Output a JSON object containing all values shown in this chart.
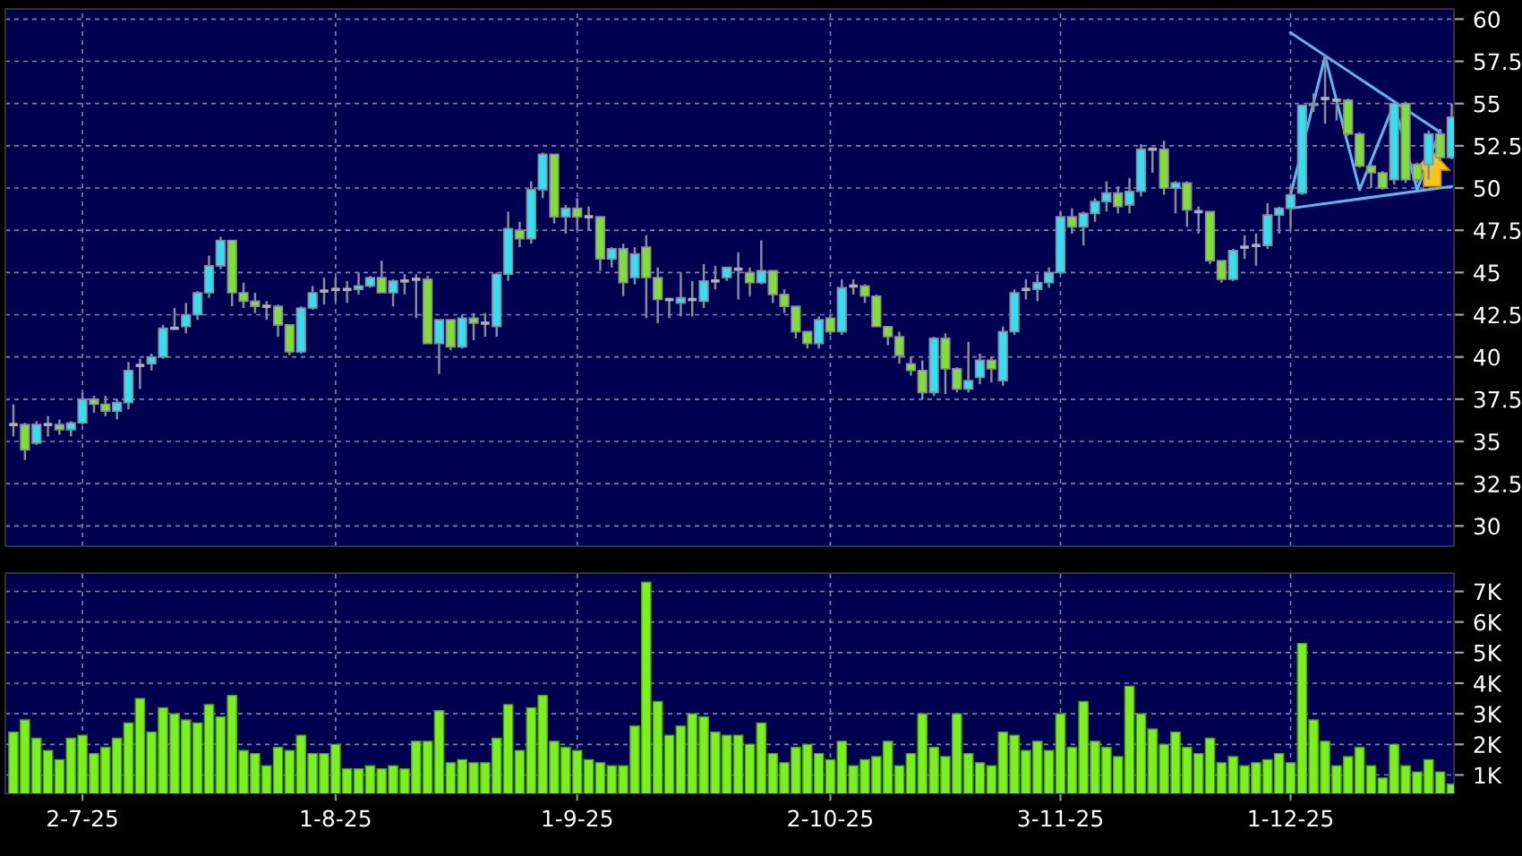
{
  "chart_data": [
    {
      "type": "candlestick",
      "categories": [
        null,
        null,
        null,
        null,
        null,
        null,
        null,
        null,
        null,
        null,
        null,
        null,
        null,
        null,
        null,
        null,
        null,
        null,
        null,
        null,
        null,
        null,
        null,
        null,
        null,
        null,
        null,
        null,
        null,
        null,
        null,
        null,
        null,
        null,
        null,
        null,
        null,
        null,
        null,
        null,
        null,
        null,
        null,
        null,
        null,
        null,
        null,
        null,
        null,
        null,
        null,
        null,
        null,
        null,
        null,
        null,
        null,
        null,
        null,
        null,
        null,
        null,
        null,
        null,
        null,
        null,
        null,
        null,
        null,
        null,
        null,
        null,
        null,
        null,
        null,
        null,
        null,
        null,
        null,
        null,
        null,
        null,
        null,
        null,
        null,
        null,
        null,
        null,
        null,
        null,
        null,
        null,
        null,
        null,
        null,
        null,
        null,
        null,
        null,
        null,
        null,
        null,
        null,
        null,
        null,
        null,
        null,
        null,
        null,
        null,
        null,
        null,
        null,
        null,
        null,
        null,
        null,
        null,
        null,
        null,
        null,
        null,
        null,
        null,
        null,
        null
      ],
      "ohlc": [
        [
          36.0,
          37.2,
          35.3,
          36.0
        ],
        [
          36.0,
          36.1,
          33.9,
          34.5
        ],
        [
          34.9,
          36.2,
          34.8,
          36.0
        ],
        [
          36.0,
          36.5,
          35.3,
          36.0
        ],
        [
          36.0,
          36.3,
          35.4,
          35.7
        ],
        [
          35.7,
          36.2,
          35.3,
          36.1
        ],
        [
          36.1,
          37.9,
          36.0,
          37.5
        ],
        [
          37.5,
          37.7,
          36.7,
          37.2
        ],
        [
          37.2,
          37.7,
          36.5,
          36.8
        ],
        [
          36.8,
          37.5,
          36.3,
          37.3
        ],
        [
          37.3,
          39.7,
          36.9,
          39.2
        ],
        [
          39.5,
          39.9,
          38.1,
          39.5
        ],
        [
          39.6,
          40.2,
          39.2,
          40.0
        ],
        [
          40.0,
          41.9,
          39.9,
          41.7
        ],
        [
          41.7,
          42.9,
          41.6,
          41.7
        ],
        [
          41.8,
          43.2,
          41.4,
          42.5
        ],
        [
          42.5,
          43.9,
          42.2,
          43.8
        ],
        [
          43.8,
          46.0,
          43.5,
          45.4
        ],
        [
          45.4,
          47.1,
          45.2,
          46.9
        ],
        [
          46.9,
          46.9,
          43.0,
          43.8
        ],
        [
          43.8,
          44.4,
          42.9,
          43.3
        ],
        [
          43.3,
          43.8,
          42.6,
          43.0
        ],
        [
          43.0,
          43.3,
          42.2,
          43.0
        ],
        [
          43.0,
          43.1,
          41.2,
          41.9
        ],
        [
          41.9,
          41.9,
          40.1,
          40.3
        ],
        [
          40.3,
          43.0,
          40.2,
          42.9
        ],
        [
          42.9,
          44.2,
          42.8,
          43.8
        ],
        [
          43.9,
          44.7,
          43.1,
          43.9
        ],
        [
          44.0,
          44.7,
          43.3,
          44.0
        ],
        [
          44.0,
          44.5,
          43.2,
          44.0
        ],
        [
          44.0,
          45.0,
          43.7,
          44.2
        ],
        [
          44.2,
          44.8,
          44.1,
          44.7
        ],
        [
          44.7,
          45.7,
          43.8,
          43.8
        ],
        [
          43.8,
          44.6,
          43.0,
          44.5
        ],
        [
          44.5,
          44.9,
          43.7,
          44.5
        ],
        [
          44.6,
          44.9,
          42.3,
          44.6
        ],
        [
          44.6,
          44.8,
          40.8,
          40.8
        ],
        [
          40.8,
          42.2,
          39.0,
          42.2
        ],
        [
          42.2,
          42.2,
          40.4,
          40.6
        ],
        [
          40.6,
          42.5,
          40.5,
          42.3
        ],
        [
          42.3,
          42.6,
          41.0,
          42.0
        ],
        [
          42.0,
          42.6,
          41.2,
          42.0
        ],
        [
          41.8,
          45.0,
          41.2,
          44.9
        ],
        [
          44.9,
          48.6,
          44.5,
          47.6
        ],
        [
          47.5,
          48.0,
          46.5,
          47.0
        ],
        [
          47.0,
          50.4,
          46.7,
          49.9
        ],
        [
          49.9,
          52.1,
          49.4,
          52.0
        ],
        [
          52.0,
          52.0,
          47.9,
          48.3
        ],
        [
          48.3,
          49.0,
          47.3,
          48.8
        ],
        [
          48.8,
          49.4,
          47.5,
          48.3
        ],
        [
          48.3,
          48.9,
          47.5,
          48.3
        ],
        [
          48.3,
          48.3,
          45.1,
          45.8
        ],
        [
          45.8,
          46.5,
          45.3,
          46.4
        ],
        [
          46.4,
          46.7,
          43.6,
          44.4
        ],
        [
          44.7,
          46.5,
          44.3,
          46.1
        ],
        [
          46.5,
          47.2,
          42.3,
          44.7
        ],
        [
          44.7,
          45.3,
          42.0,
          43.4
        ],
        [
          43.4,
          43.5,
          42.3,
          43.4
        ],
        [
          43.2,
          45.0,
          42.4,
          43.5
        ],
        [
          43.4,
          44.5,
          42.4,
          43.4
        ],
        [
          43.3,
          45.5,
          42.9,
          44.5
        ],
        [
          44.5,
          45.4,
          44.0,
          44.5
        ],
        [
          44.7,
          45.3,
          44.5,
          45.3
        ],
        [
          45.2,
          46.2,
          43.4,
          45.2
        ],
        [
          45.0,
          45.3,
          43.6,
          44.4
        ],
        [
          44.4,
          46.9,
          44.3,
          45.1
        ],
        [
          45.1,
          45.1,
          43.2,
          43.7
        ],
        [
          43.7,
          44.0,
          42.6,
          43.0
        ],
        [
          43.0,
          43.0,
          41.1,
          41.5
        ],
        [
          41.5,
          41.5,
          40.5,
          40.8
        ],
        [
          40.8,
          42.4,
          40.5,
          42.2
        ],
        [
          42.3,
          42.5,
          41.3,
          41.5
        ],
        [
          41.5,
          44.6,
          41.3,
          44.1
        ],
        [
          44.2,
          44.6,
          43.7,
          44.2
        ],
        [
          44.2,
          44.3,
          43.2,
          43.6
        ],
        [
          43.6,
          43.7,
          41.8,
          41.8
        ],
        [
          41.8,
          41.8,
          40.7,
          41.2
        ],
        [
          41.2,
          41.5,
          39.6,
          40.1
        ],
        [
          39.6,
          40.0,
          38.9,
          39.2
        ],
        [
          39.2,
          39.8,
          37.5,
          37.9
        ],
        [
          37.9,
          41.2,
          37.7,
          41.1
        ],
        [
          41.1,
          41.4,
          37.8,
          39.3
        ],
        [
          39.3,
          39.4,
          37.9,
          38.1
        ],
        [
          38.1,
          40.9,
          37.9,
          38.6
        ],
        [
          38.8,
          40.2,
          38.4,
          39.8
        ],
        [
          39.8,
          40.0,
          38.5,
          39.3
        ],
        [
          38.6,
          41.8,
          38.3,
          41.5
        ],
        [
          41.5,
          44.0,
          41.3,
          43.8
        ],
        [
          44.0,
          44.6,
          43.4,
          44.0
        ],
        [
          44.0,
          44.9,
          43.3,
          44.4
        ],
        [
          44.4,
          45.3,
          44.1,
          45.0
        ],
        [
          45.0,
          48.6,
          44.9,
          48.3
        ],
        [
          48.3,
          48.8,
          47.3,
          47.7
        ],
        [
          47.7,
          48.6,
          46.6,
          48.5
        ],
        [
          48.5,
          49.4,
          48.0,
          49.2
        ],
        [
          49.2,
          50.4,
          48.6,
          49.7
        ],
        [
          49.7,
          50.1,
          48.5,
          48.9
        ],
        [
          49.0,
          50.6,
          48.5,
          49.8
        ],
        [
          49.8,
          52.6,
          49.5,
          52.3
        ],
        [
          52.3,
          52.3,
          50.9,
          52.3
        ],
        [
          52.3,
          52.8,
          49.6,
          50.0
        ],
        [
          50.0,
          50.4,
          48.5,
          50.3
        ],
        [
          50.3,
          50.4,
          47.7,
          48.7
        ],
        [
          48.6,
          48.9,
          47.3,
          48.6
        ],
        [
          48.6,
          48.6,
          45.5,
          45.7
        ],
        [
          45.7,
          45.7,
          44.4,
          44.6
        ],
        [
          44.6,
          46.4,
          44.5,
          46.3
        ],
        [
          46.5,
          47.2,
          45.8,
          46.5
        ],
        [
          46.6,
          47.3,
          45.4,
          46.6
        ],
        [
          46.6,
          49.1,
          46.4,
          48.4
        ],
        [
          48.4,
          48.9,
          47.3,
          48.8
        ],
        [
          48.8,
          50.1,
          47.6,
          49.6
        ],
        [
          49.7,
          54.9,
          49.6,
          54.9
        ],
        [
          54.9,
          55.6,
          54.5,
          55.0
        ],
        [
          55.3,
          57.9,
          53.8,
          55.3
        ],
        [
          55.2,
          55.3,
          54.0,
          55.2
        ],
        [
          55.2,
          55.3,
          53.1,
          53.2
        ],
        [
          53.2,
          53.3,
          51.2,
          51.3
        ],
        [
          51.3,
          51.4,
          50.0,
          50.9
        ],
        [
          50.9,
          51.0,
          49.9,
          50.0
        ],
        [
          50.5,
          55.0,
          50.2,
          55.0
        ],
        [
          55.0,
          55.1,
          50.3,
          50.5
        ],
        [
          51.4,
          51.5,
          50.3,
          50.5
        ],
        [
          51.4,
          53.4,
          50.5,
          53.2
        ],
        [
          53.2,
          53.5,
          51.6,
          51.8
        ],
        [
          51.8,
          55.0,
          51.7,
          54.2
        ]
      ],
      "series": [
        {
          "type": "line",
          "color": "#5ab8f0",
          "values": [
            null,
            null,
            null,
            null,
            null,
            null,
            null,
            null,
            null,
            null,
            null,
            null,
            null,
            null,
            null,
            null,
            null,
            null,
            null,
            null,
            null,
            null,
            null,
            null,
            null,
            null,
            null,
            null,
            null,
            null,
            null,
            null,
            null,
            null,
            null,
            null,
            null,
            null,
            null,
            null,
            null,
            null,
            null,
            null,
            null,
            null,
            null,
            null,
            null,
            null,
            null,
            null,
            null,
            null,
            null,
            null,
            null,
            null,
            null,
            null,
            null,
            null,
            null,
            null,
            null,
            null,
            null,
            null,
            null,
            null,
            null,
            null,
            null,
            null,
            null,
            null,
            null,
            null,
            null,
            null,
            null,
            null,
            null,
            null,
            null,
            null,
            null,
            null,
            null,
            null,
            null,
            null,
            null,
            null,
            null,
            null,
            null,
            null,
            null,
            null,
            null,
            null,
            null,
            null,
            null,
            null,
            null,
            null,
            null,
            null,
            null,
            59.2,
            null,
            null,
            null,
            null,
            null,
            null,
            null,
            null,
            null,
            null,
            null,
            null,
            53.3,
            null
          ]
        },
        {
          "type": "line",
          "color": "#5ab8f0",
          "values": [
            null,
            null,
            null,
            null,
            null,
            null,
            null,
            null,
            null,
            null,
            null,
            null,
            null,
            null,
            null,
            null,
            null,
            null,
            null,
            null,
            null,
            null,
            null,
            null,
            null,
            null,
            null,
            null,
            null,
            null,
            null,
            null,
            null,
            null,
            null,
            null,
            null,
            null,
            null,
            null,
            null,
            null,
            null,
            null,
            null,
            null,
            null,
            null,
            null,
            null,
            null,
            null,
            null,
            null,
            null,
            null,
            null,
            null,
            null,
            null,
            null,
            null,
            null,
            null,
            null,
            null,
            null,
            null,
            null,
            null,
            null,
            null,
            null,
            null,
            null,
            null,
            null,
            null,
            null,
            null,
            null,
            null,
            null,
            null,
            null,
            null,
            null,
            null,
            null,
            null,
            null,
            null,
            null,
            null,
            null,
            null,
            null,
            null,
            null,
            null,
            null,
            null,
            null,
            null,
            null,
            null,
            null,
            null,
            null,
            null,
            null,
            48.8,
            null,
            null,
            null,
            null,
            null,
            null,
            null,
            null,
            null,
            null,
            null,
            null,
            null,
            50.1
          ]
        },
        {
          "type": "line",
          "color": "#5ab8f0",
          "values": [
            null,
            null,
            null,
            null,
            null,
            null,
            null,
            null,
            null,
            null,
            null,
            null,
            null,
            null,
            null,
            null,
            null,
            null,
            null,
            null,
            null,
            null,
            null,
            null,
            null,
            null,
            null,
            null,
            null,
            null,
            null,
            null,
            null,
            null,
            null,
            null,
            null,
            null,
            null,
            null,
            null,
            null,
            null,
            null,
            null,
            null,
            null,
            null,
            null,
            null,
            null,
            null,
            null,
            null,
            null,
            null,
            null,
            null,
            null,
            null,
            null,
            null,
            null,
            null,
            null,
            null,
            null,
            null,
            null,
            null,
            null,
            null,
            null,
            null,
            null,
            null,
            null,
            null,
            null,
            null,
            null,
            null,
            null,
            null,
            null,
            null,
            null,
            null,
            null,
            null,
            null,
            null,
            null,
            null,
            null,
            null,
            null,
            null,
            null,
            null,
            null,
            null,
            null,
            null,
            null,
            null,
            null,
            null,
            null,
            null,
            null,
            49.6,
            null,
            null,
            57.8,
            null,
            null,
            49.9,
            null,
            null,
            55.0,
            null,
            49.9,
            null,
            53.4,
            null
          ]
        }
      ],
      "ylim": [
        28.8,
        60.6
      ],
      "yticks": [
        30,
        32.5,
        35,
        37.5,
        40,
        42.5,
        45,
        47.5,
        50,
        52.5,
        55,
        57.5,
        60
      ],
      "tick_labels": "y",
      "grid": true
    },
    {
      "type": "bar",
      "categories": [
        null,
        null,
        null,
        null,
        null,
        null,
        "2-7-25",
        null,
        null,
        null,
        null,
        null,
        null,
        null,
        null,
        null,
        null,
        null,
        null,
        null,
        null,
        null,
        null,
        null,
        null,
        null,
        null,
        null,
        "1-8-25",
        null,
        null,
        null,
        null,
        null,
        null,
        null,
        null,
        null,
        null,
        null,
        null,
        null,
        null,
        null,
        null,
        null,
        null,
        null,
        null,
        "1-9-25",
        null,
        null,
        null,
        null,
        null,
        null,
        null,
        null,
        null,
        null,
        null,
        null,
        null,
        null,
        null,
        null,
        null,
        null,
        null,
        null,
        null,
        "2-10-25",
        null,
        null,
        null,
        null,
        null,
        null,
        null,
        null,
        null,
        null,
        null,
        null,
        null,
        null,
        null,
        null,
        null,
        null,
        null,
        "3-11-25",
        null,
        null,
        null,
        null,
        null,
        null,
        null,
        null,
        null,
        null,
        null,
        null,
        null,
        null,
        null,
        null,
        null,
        null,
        null,
        "1-12-25",
        null,
        null,
        null,
        null,
        null,
        null,
        null,
        null,
        null,
        null,
        null,
        null,
        null,
        null
      ],
      "values": [
        2.4,
        2.8,
        2.2,
        1.8,
        1.5,
        2.2,
        2.3,
        1.7,
        1.9,
        2.2,
        2.7,
        3.5,
        2.4,
        3.2,
        3.0,
        2.8,
        2.7,
        3.3,
        2.9,
        3.6,
        1.8,
        1.7,
        1.3,
        1.9,
        1.8,
        2.3,
        1.7,
        1.7,
        2.0,
        1.2,
        1.2,
        1.3,
        1.2,
        1.3,
        1.2,
        2.1,
        2.1,
        3.1,
        1.4,
        1.5,
        1.4,
        1.4,
        2.2,
        3.3,
        1.8,
        3.2,
        3.6,
        2.1,
        1.9,
        1.8,
        1.5,
        1.4,
        1.3,
        1.3,
        2.6,
        7.3,
        3.4,
        2.3,
        2.6,
        3.0,
        2.9,
        2.4,
        2.3,
        2.3,
        2.0,
        2.7,
        1.7,
        1.4,
        1.9,
        2.0,
        1.7,
        1.5,
        2.1,
        1.3,
        1.5,
        1.6,
        2.1,
        1.3,
        1.7,
        3.0,
        1.9,
        1.6,
        3.0,
        1.7,
        1.4,
        1.3,
        2.4,
        2.3,
        1.8,
        2.1,
        1.8,
        3.0,
        1.9,
        3.4,
        2.1,
        1.9,
        1.6,
        3.9,
        3.0,
        2.5,
        2.0,
        2.4,
        1.9,
        1.7,
        2.2,
        1.4,
        1.6,
        1.3,
        1.4,
        1.5,
        1.7,
        1.4,
        5.3,
        2.8,
        2.1,
        1.3,
        1.6,
        1.9,
        1.3,
        0.9,
        2.0,
        1.3,
        1.1,
        1.5,
        1.1,
        0.7
      ],
      "color": "#7cf01c",
      "ylim": [
        0.4,
        7.6
      ],
      "yticks": [
        {
          "value": 1,
          "label": "1K"
        },
        {
          "value": 2,
          "label": "2K"
        },
        {
          "value": 3,
          "label": "3K"
        },
        {
          "value": 4,
          "label": "4K"
        },
        {
          "value": 5,
          "label": "5K"
        },
        {
          "value": 6,
          "label": "6K"
        },
        {
          "value": 7,
          "label": "7K"
        }
      ],
      "grid": true
    }
  ]
}
